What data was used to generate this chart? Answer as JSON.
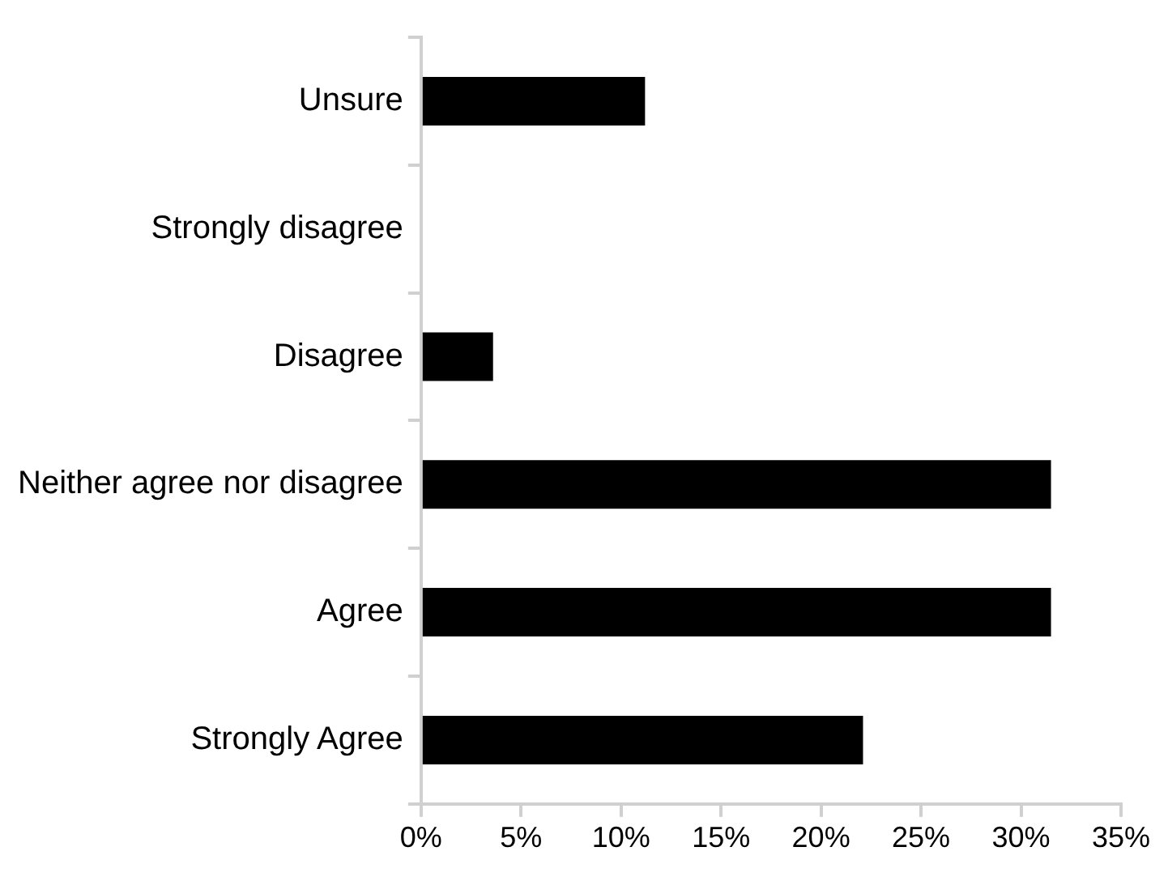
{
  "chart_data": {
    "type": "bar",
    "orientation": "horizontal",
    "categories": [
      "Unsure",
      "Strongly disagree",
      "Disagree",
      "Neither agree nor disagree",
      "Agree",
      "Strongly Agree"
    ],
    "values": [
      11.2,
      0,
      3.6,
      31.5,
      31.5,
      22.1
    ],
    "color": "#000000",
    "xlim": [
      0,
      35
    ],
    "xticks": [
      {
        "value": 0,
        "label": "0%"
      },
      {
        "value": 5,
        "label": "5%"
      },
      {
        "value": 10,
        "label": "10%"
      },
      {
        "value": 15,
        "label": "15%"
      },
      {
        "value": 20,
        "label": "20%"
      },
      {
        "value": 25,
        "label": "25%"
      },
      {
        "value": 30,
        "label": "30%"
      },
      {
        "value": 35,
        "label": "35%"
      }
    ],
    "grid": false,
    "legend": false
  }
}
